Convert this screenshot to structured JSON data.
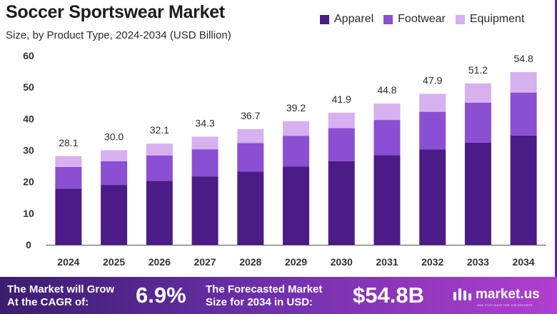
{
  "title": "Soccer Sportswear Market",
  "subtitle": "Size, by Product Type, 2024-2034 (USD Billion)",
  "colors": {
    "apparel": "#4b1b87",
    "footwear": "#8a4fd2",
    "equipment": "#d7b0f0",
    "axis": "#333333"
  },
  "chart_data": {
    "type": "bar",
    "stacked": true,
    "categories": [
      "2024",
      "2025",
      "2026",
      "2027",
      "2028",
      "2029",
      "2030",
      "2031",
      "2032",
      "2033",
      "2034"
    ],
    "series": [
      {
        "name": "Apparel",
        "values": [
          17.8,
          19.0,
          20.3,
          21.7,
          23.2,
          24.8,
          26.5,
          28.4,
          30.3,
          32.4,
          34.7
        ]
      },
      {
        "name": "Footwear",
        "values": [
          6.9,
          7.5,
          8.0,
          8.6,
          9.1,
          9.8,
          10.5,
          11.2,
          11.9,
          12.7,
          13.6
        ]
      },
      {
        "name": "Equipment",
        "values": [
          3.4,
          3.5,
          3.8,
          4.0,
          4.4,
          4.6,
          4.9,
          5.2,
          5.7,
          6.1,
          6.5
        ]
      }
    ],
    "totals": [
      "28.1",
      "30.0",
      "32.1",
      "34.3",
      "36.7",
      "39.2",
      "41.9",
      "44.8",
      "47.9",
      "51.2",
      "54.8"
    ],
    "ylim": [
      0,
      60
    ],
    "yticks": [
      0,
      10,
      20,
      30,
      40,
      50,
      60
    ],
    "grid": false,
    "legend": "top-right"
  },
  "footer": {
    "cagr_line1": "The Market will Grow",
    "cagr_line2": "At the CAGR of:",
    "cagr_value": "6.9%",
    "forecast_line1": "The Forecasted Market",
    "forecast_line2": "Size for 2034 in USD:",
    "forecast_value": "$54.8B",
    "brand": "market.us",
    "brand_tagline": "ONE STOP SHOP FOR THE REPORTS"
  }
}
